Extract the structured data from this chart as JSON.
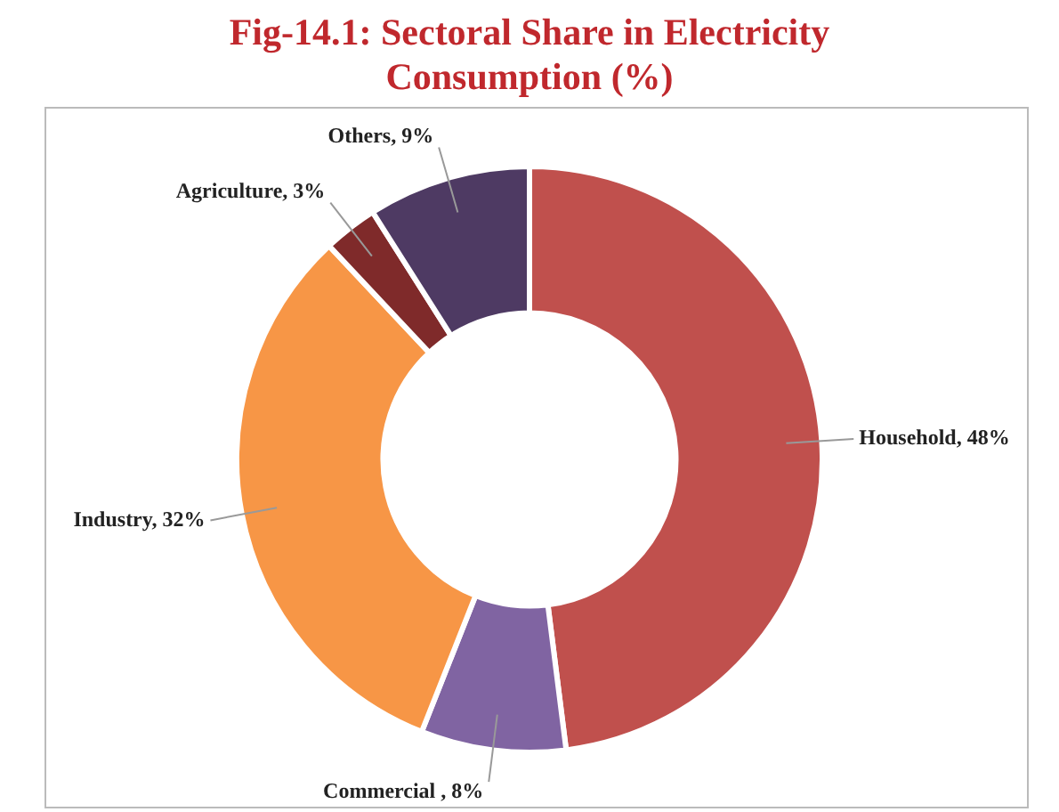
{
  "chart_data": {
    "type": "donut",
    "title": "Fig-14.1: Sectoral Share in Electricity Consumption (%)",
    "categories": [
      "Household",
      "Commercial ",
      "Industry",
      "Agriculture",
      "Others"
    ],
    "values": [
      48,
      8,
      32,
      3,
      9
    ],
    "value_labels": [
      "48%",
      "8%",
      "32%",
      "3%",
      "9%"
    ],
    "colors": [
      "#c0504d",
      "#8064a2",
      "#f79646",
      "#7f2a2a",
      "#4e3a63"
    ],
    "legend": false
  }
}
